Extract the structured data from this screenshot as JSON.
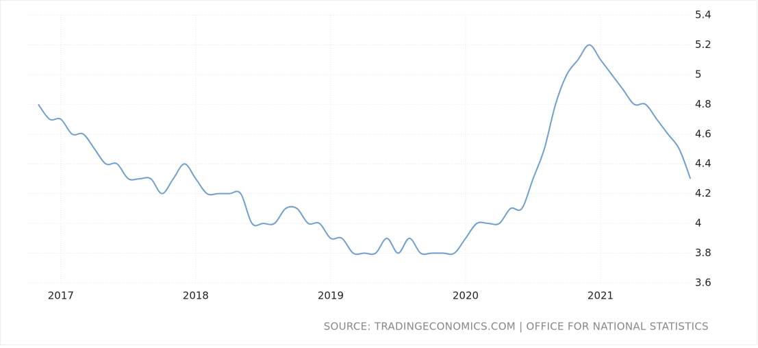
{
  "chart_data": {
    "type": "line",
    "categories": [
      null,
      null,
      "2017",
      null,
      null,
      null,
      null,
      null,
      null,
      null,
      null,
      null,
      null,
      null,
      "2018",
      null,
      null,
      null,
      null,
      null,
      null,
      null,
      null,
      null,
      null,
      null,
      "2019",
      null,
      null,
      null,
      null,
      null,
      null,
      null,
      null,
      null,
      null,
      null,
      "2020",
      null,
      null,
      null,
      null,
      null,
      null,
      null,
      null,
      null,
      null,
      null,
      "2021",
      null,
      null,
      null,
      null,
      null,
      null,
      null,
      null
    ],
    "values": [
      4.8,
      4.7,
      4.7,
      4.6,
      4.6,
      4.5,
      4.4,
      4.4,
      4.3,
      4.3,
      4.3,
      4.2,
      4.3,
      4.4,
      4.3,
      4.2,
      4.2,
      4.2,
      4.2,
      4.0,
      4.0,
      4.0,
      4.1,
      4.1,
      4.0,
      4.0,
      3.9,
      3.9,
      3.8,
      3.8,
      3.8,
      3.9,
      3.8,
      3.9,
      3.8,
      3.8,
      3.8,
      3.8,
      3.9,
      4.0,
      4.0,
      4.0,
      4.1,
      4.1,
      4.3,
      4.5,
      4.8,
      5.0,
      5.1,
      5.2,
      5.1,
      5.0,
      4.9,
      4.8,
      4.8,
      4.7,
      4.6,
      4.5,
      4.3
    ],
    "color": "#6d9fd1",
    "ylim": [
      3.6,
      5.4
    ],
    "yticks": [
      3.6,
      3.8,
      4,
      4.2,
      4.4,
      4.6,
      4.8,
      5,
      5.2,
      5.4
    ],
    "grid": true,
    "source": "SOURCE: TRADINGECONOMICS.COM | OFFICE FOR NATIONAL STATISTICS"
  }
}
